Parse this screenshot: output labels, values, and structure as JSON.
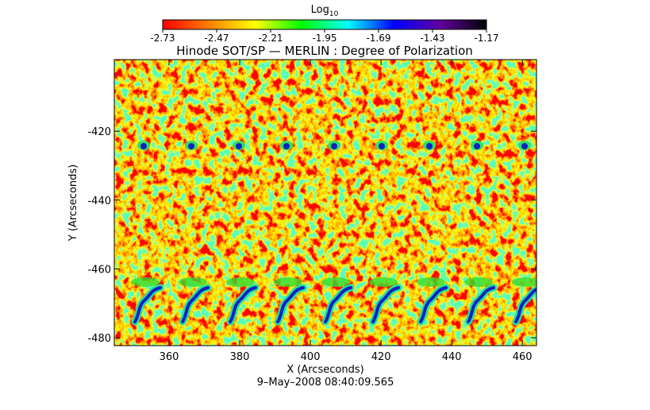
{
  "chart_data": {
    "type": "heatmap",
    "title": "Hinode SOT/SP — MERLIN : Degree of Polarization",
    "x_label": "X (Arcseconds)",
    "y_label": "Y (Arcseconds)",
    "timestamp": "9–May–2008 08:40:09.565",
    "xlim": [
      344.5,
      464.0
    ],
    "ylim": [
      -482.3,
      -399.2
    ],
    "xticks": [
      360,
      380,
      400,
      420,
      440,
      460
    ],
    "yticks": [
      -480,
      -460,
      -440,
      -420
    ],
    "colorbar": {
      "label": "Log",
      "label_subscript": "10",
      "lim": [
        -2.73,
        -1.17
      ],
      "ticks": [
        -2.73,
        -2.47,
        -2.21,
        -1.95,
        -1.69,
        -1.43,
        -1.17
      ],
      "colormap": [
        "#ff0000",
        "#ff8000",
        "#ffff00",
        "#00ff00",
        "#00ffff",
        "#0000ff",
        "#6000a0",
        "#000000"
      ]
    }
  }
}
